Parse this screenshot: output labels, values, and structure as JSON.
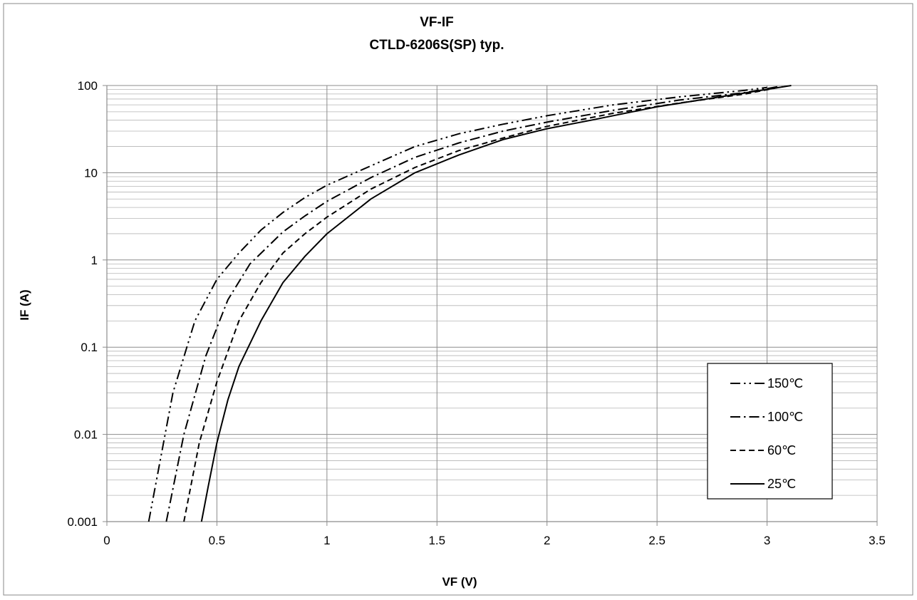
{
  "chart_data": {
    "type": "line",
    "title": "VF-IF",
    "subtitle": "CTLD-6206S(SP) typ.",
    "xlabel": "VF (V)",
    "ylabel": "IF (A)",
    "xlim": [
      0,
      3.5
    ],
    "ylim": [
      0.001,
      100
    ],
    "y_scale": "log",
    "x_ticks": [
      "0",
      "0.5",
      "1",
      "1.5",
      "2",
      "2.5",
      "3",
      "3.5"
    ],
    "y_ticks": [
      "0.001",
      "0.01",
      "0.1",
      "1",
      "10",
      "100"
    ],
    "grid": true,
    "legend_position": "right",
    "series": [
      {
        "name": "150℃",
        "dash": "dash-dot-dot",
        "points": [
          [
            0.19,
            0.001
          ],
          [
            0.3,
            0.03
          ],
          [
            0.4,
            0.2
          ],
          [
            0.5,
            0.6
          ],
          [
            0.6,
            1.2
          ],
          [
            0.7,
            2.2
          ],
          [
            0.8,
            3.5
          ],
          [
            0.9,
            5.2
          ],
          [
            1.0,
            7.2
          ],
          [
            1.2,
            12
          ],
          [
            1.4,
            20
          ],
          [
            1.6,
            28
          ],
          [
            1.8,
            36
          ],
          [
            2.0,
            45
          ],
          [
            2.3,
            60
          ],
          [
            2.6,
            74
          ],
          [
            2.9,
            88
          ],
          [
            3.0,
            95
          ]
        ]
      },
      {
        "name": "100℃",
        "dash": "dash-dot",
        "points": [
          [
            0.27,
            0.001
          ],
          [
            0.35,
            0.01
          ],
          [
            0.45,
            0.08
          ],
          [
            0.55,
            0.35
          ],
          [
            0.65,
            0.9
          ],
          [
            0.8,
            2.1
          ],
          [
            0.9,
            3.2
          ],
          [
            1.0,
            4.7
          ],
          [
            1.2,
            8.8
          ],
          [
            1.4,
            15
          ],
          [
            1.6,
            22
          ],
          [
            1.8,
            30
          ],
          [
            2.0,
            38
          ],
          [
            2.3,
            52
          ],
          [
            2.6,
            68
          ],
          [
            2.9,
            83
          ],
          [
            3.05,
            97
          ]
        ]
      },
      {
        "name": "60℃",
        "dash": "dash",
        "points": [
          [
            0.35,
            0.001
          ],
          [
            0.42,
            0.008
          ],
          [
            0.5,
            0.04
          ],
          [
            0.6,
            0.2
          ],
          [
            0.7,
            0.55
          ],
          [
            0.8,
            1.2
          ],
          [
            0.9,
            2.0
          ],
          [
            1.0,
            3.1
          ],
          [
            1.2,
            6.5
          ],
          [
            1.4,
            11.5
          ],
          [
            1.6,
            18
          ],
          [
            1.8,
            25
          ],
          [
            2.0,
            34
          ],
          [
            2.3,
            48
          ],
          [
            2.6,
            63
          ],
          [
            2.9,
            80
          ],
          [
            3.07,
            97
          ]
        ]
      },
      {
        "name": "25℃",
        "dash": "solid",
        "points": [
          [
            0.43,
            0.001
          ],
          [
            0.46,
            0.0025
          ],
          [
            0.5,
            0.008
          ],
          [
            0.55,
            0.025
          ],
          [
            0.6,
            0.06
          ],
          [
            0.7,
            0.2
          ],
          [
            0.8,
            0.55
          ],
          [
            0.9,
            1.1
          ],
          [
            1.0,
            2.0
          ],
          [
            1.2,
            5.0
          ],
          [
            1.4,
            10
          ],
          [
            1.6,
            16
          ],
          [
            1.8,
            24
          ],
          [
            2.0,
            32
          ],
          [
            2.2,
            40
          ],
          [
            2.5,
            57
          ],
          [
            2.8,
            75
          ],
          [
            3.11,
            100
          ]
        ]
      }
    ]
  }
}
